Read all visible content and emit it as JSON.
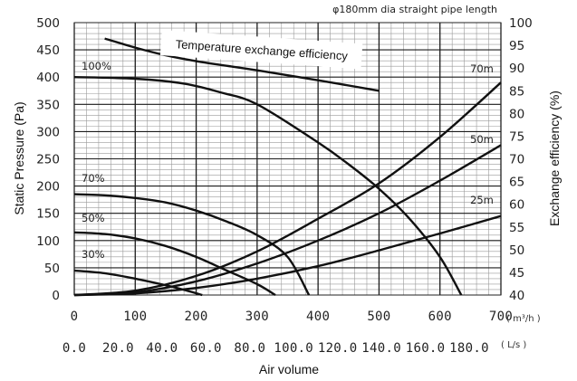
{
  "chart_data": {
    "type": "line",
    "title": "",
    "note": "φ180mm dia straight pipe length",
    "xlabel": "Air volume",
    "x_units": {
      "primary": "( m³/h )",
      "secondary": "( L/s )"
    },
    "ylabel_left": "Static Pressure (Pa)",
    "ylabel_right": "Exchange efficiency (%)",
    "xlim": [
      0,
      700
    ],
    "ylim_left": [
      0,
      500
    ],
    "ylim_right": [
      40,
      100
    ],
    "grid": true,
    "x_ticks_m3h": [
      "0",
      "100",
      "200",
      "300",
      "400",
      "500",
      "600",
      "700"
    ],
    "x_ticks_ls": [
      "0.0",
      "20.0",
      "40.0",
      "60.0",
      "80.0",
      "100.0",
      "120.0",
      "140.0",
      "160.0",
      "180.0"
    ],
    "y_ticks_left": [
      "0",
      "50",
      "100",
      "150",
      "200",
      "250",
      "300",
      "350",
      "400",
      "450",
      "500"
    ],
    "y_ticks_right": [
      "40",
      "45",
      "50",
      "55",
      "60",
      "65",
      "70",
      "75",
      "80",
      "85",
      "90",
      "95",
      "100"
    ],
    "fan_curves": [
      {
        "name": "100%",
        "points": [
          [
            0,
            400
          ],
          [
            100,
            397
          ],
          [
            180,
            388
          ],
          [
            240,
            372
          ],
          [
            300,
            350
          ],
          [
            400,
            280
          ],
          [
            450,
            240
          ],
          [
            500,
            195
          ],
          [
            550,
            140
          ],
          [
            600,
            70
          ],
          [
            635,
            0
          ]
        ]
      },
      {
        "name": "70%",
        "points": [
          [
            0,
            185
          ],
          [
            50,
            183
          ],
          [
            100,
            178
          ],
          [
            150,
            170
          ],
          [
            200,
            155
          ],
          [
            250,
            135
          ],
          [
            300,
            110
          ],
          [
            350,
            70
          ],
          [
            385,
            0
          ]
        ]
      },
      {
        "name": "50%",
        "points": [
          [
            0,
            115
          ],
          [
            50,
            112
          ],
          [
            100,
            104
          ],
          [
            150,
            90
          ],
          [
            200,
            70
          ],
          [
            250,
            45
          ],
          [
            300,
            20
          ],
          [
            330,
            0
          ]
        ]
      },
      {
        "name": "30%",
        "points": [
          [
            0,
            45
          ],
          [
            50,
            40
          ],
          [
            100,
            30
          ],
          [
            150,
            18
          ],
          [
            185,
            8
          ],
          [
            210,
            0
          ]
        ]
      }
    ],
    "pipe_curves": [
      {
        "name": "70m",
        "points": [
          [
            0,
            0
          ],
          [
            100,
            8
          ],
          [
            200,
            35
          ],
          [
            300,
            80
          ],
          [
            400,
            140
          ],
          [
            500,
            205
          ],
          [
            600,
            290
          ],
          [
            700,
            390
          ]
        ]
      },
      {
        "name": "50m",
        "points": [
          [
            0,
            0
          ],
          [
            100,
            5
          ],
          [
            200,
            25
          ],
          [
            300,
            58
          ],
          [
            400,
            100
          ],
          [
            500,
            150
          ],
          [
            600,
            210
          ],
          [
            700,
            275
          ]
        ]
      },
      {
        "name": "25m",
        "points": [
          [
            0,
            0
          ],
          [
            100,
            3
          ],
          [
            200,
            13
          ],
          [
            300,
            30
          ],
          [
            400,
            53
          ],
          [
            500,
            82
          ],
          [
            600,
            113
          ],
          [
            700,
            145
          ]
        ]
      }
    ],
    "efficiency_curve": {
      "name": "Temperature exchange efficiency",
      "axis": "right",
      "points": [
        [
          50,
          96.5
        ],
        [
          100,
          94.5
        ],
        [
          150,
          92.8
        ],
        [
          200,
          91.5
        ],
        [
          250,
          90.5
        ],
        [
          300,
          89.5
        ],
        [
          400,
          87.3
        ],
        [
          500,
          85
        ]
      ]
    }
  }
}
